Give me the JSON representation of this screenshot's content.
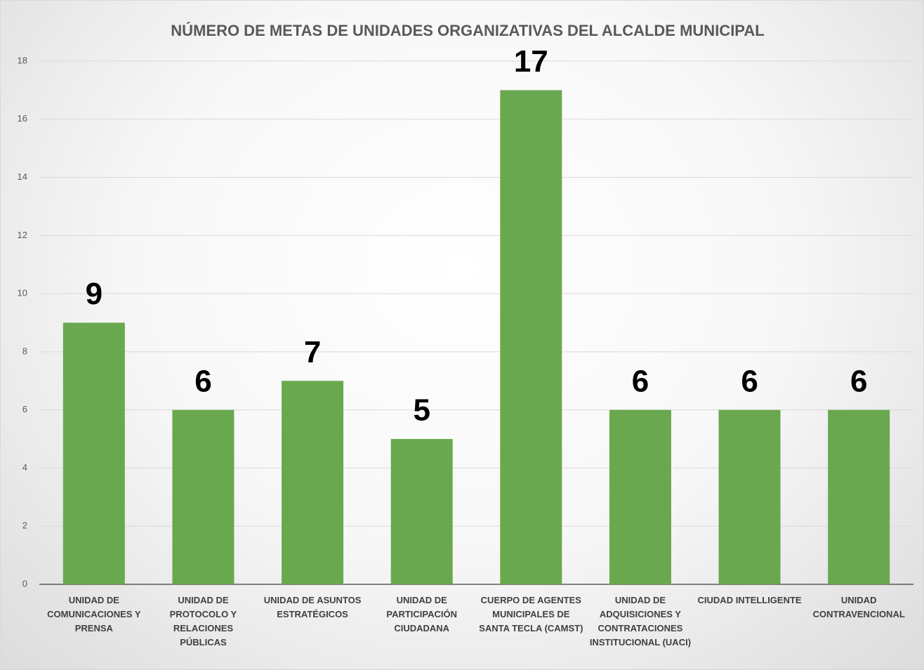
{
  "chart_data": {
    "type": "bar",
    "title": "NÚMERO DE METAS DE UNIDADES ORGANIZATIVAS DEL ALCALDE MUNICIPAL",
    "categories": [
      "UNIDAD DE COMUNICACIONES Y PRENSA",
      "UNIDAD DE PROTOCOLO Y RELACIONES PÚBLICAS",
      "UNIDAD DE ASUNTOS ESTRATÉGICOS",
      "UNIDAD DE PARTICIPACIÓN CIUDADANA",
      "CUERPO DE AGENTES MUNICIPALES DE SANTA TECLA (CAMST)",
      "UNIDAD DE ADQUISICIONES Y CONTRATACIONES INSTITUCIONAL (UACI)",
      "CIUDAD INTELLIGENTE",
      "UNIDAD CONTRAVENCIONAL"
    ],
    "values": [
      9,
      6,
      7,
      5,
      17,
      6,
      6,
      6
    ],
    "color": "#6aa84f",
    "ylim": [
      0,
      18
    ],
    "yticks": [
      0,
      2,
      4,
      6,
      8,
      10,
      12,
      14,
      16,
      18
    ],
    "grid": true
  }
}
